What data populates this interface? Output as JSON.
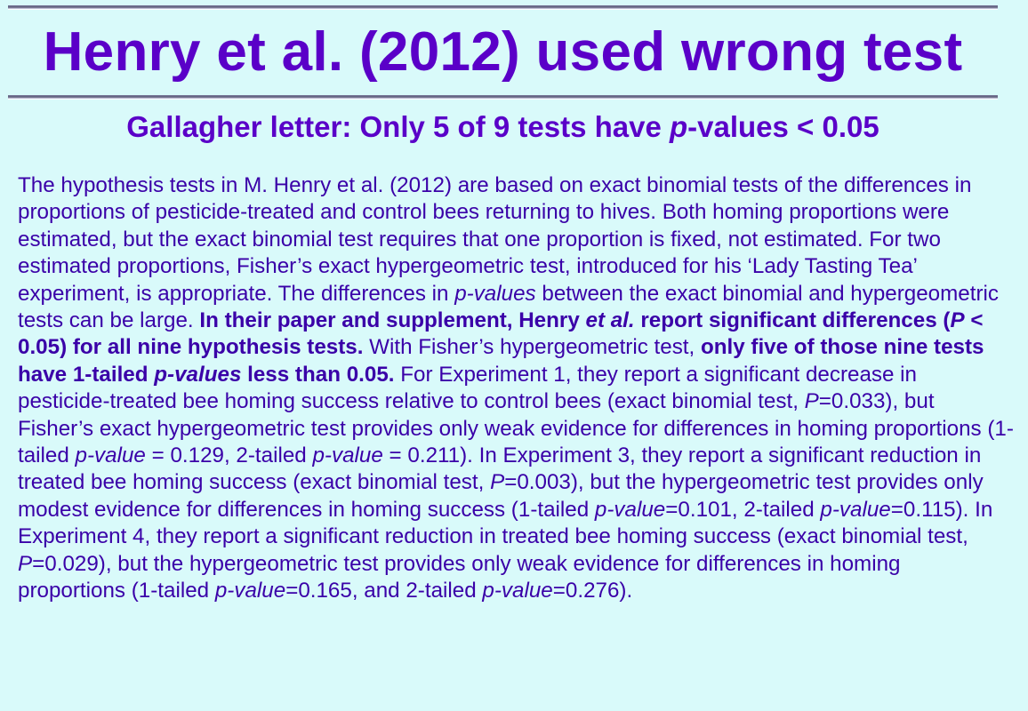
{
  "slide": {
    "title": "Henry et al. (2012) used wrong test",
    "subtitle": {
      "prefix": "Gallagher letter: Only 5 of 9 tests have ",
      "italic": "p",
      "suffix": "-values < 0.05"
    },
    "paragraph": [
      {
        "text": "The hypothesis tests in M. Henry et al. (2012) are based on exact binomial tests of the differences in proportions of pesticide-treated and control bees returning to hives. Both homing proportions were estimated, but the exact binomial test requires that one proportion is fixed, not estimated. For two estimated proportions, Fisher’s exact hypergeometric test, introduced for his ‘Lady Tasting Tea’ experiment, is appropriate. The differences in ",
        "style": "normal"
      },
      {
        "text": "p-values",
        "style": "italic"
      },
      {
        "text": " between the exact binomial and hypergeometric tests can be large. ",
        "style": "normal"
      },
      {
        "text": "In their paper and supplement, Henry ",
        "style": "bold"
      },
      {
        "text": "et al.",
        "style": "bold-italic"
      },
      {
        "text": " report significant differences (",
        "style": "bold"
      },
      {
        "text": "P",
        "style": "bold-italic"
      },
      {
        "text": " < 0.05) for all nine hypothesis tests.",
        "style": "bold"
      },
      {
        "text": " With Fisher’s hypergeometric test, ",
        "style": "normal"
      },
      {
        "text": "only five of those nine tests have 1-tailed ",
        "style": "bold"
      },
      {
        "text": "p-values",
        "style": "bold-italic"
      },
      {
        "text": " less than 0.05.",
        "style": "bold"
      },
      {
        "text": " For Experiment 1, they report a significant decrease in pesticide-treated bee homing success relative to control bees (exact binomial test, ",
        "style": "normal"
      },
      {
        "text": "P",
        "style": "italic"
      },
      {
        "text": "=0.033), but Fisher’s exact hypergeometric test provides only weak evidence for differences in homing proportions (1-tailed ",
        "style": "normal"
      },
      {
        "text": "p-value",
        "style": "italic"
      },
      {
        "text": " = 0.129, 2-tailed ",
        "style": "normal"
      },
      {
        "text": "p-value",
        "style": "italic"
      },
      {
        "text": " = 0.211). In Experiment 3, they report a significant reduction in treated bee homing success (exact binomial test, ",
        "style": "normal"
      },
      {
        "text": "P",
        "style": "italic"
      },
      {
        "text": "=0.003), but the hypergeometric test provides only modest evidence for differences in homing success (1-tailed ",
        "style": "normal"
      },
      {
        "text": "p-value",
        "style": "italic"
      },
      {
        "text": "=0.101, 2-tailed ",
        "style": "normal"
      },
      {
        "text": "p-value",
        "style": "italic"
      },
      {
        "text": "=0.115). In Experiment 4, they report a significant reduction in treated bee homing success (exact binomial test, ",
        "style": "normal"
      },
      {
        "text": "P",
        "style": "italic"
      },
      {
        "text": "=0.029), but the hypergeometric test provides only weak evidence for differences in homing proportions (1-tailed ",
        "style": "normal"
      },
      {
        "text": "p-value",
        "style": "italic"
      },
      {
        "text": "=0.165, and 2-tailed ",
        "style": "normal"
      },
      {
        "text": "p-value",
        "style": "italic"
      },
      {
        "text": "=0.276).",
        "style": "normal"
      }
    ]
  },
  "colors": {
    "background": "#d9fafa",
    "heading": "#5a00c8",
    "body_text": "#3a00a8"
  }
}
